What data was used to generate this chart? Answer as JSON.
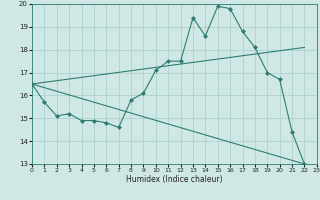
{
  "xlabel": "Humidex (Indice chaleur)",
  "xlim": [
    0,
    23
  ],
  "ylim": [
    13,
    20
  ],
  "yticks": [
    13,
    14,
    15,
    16,
    17,
    18,
    19,
    20
  ],
  "xticks": [
    0,
    1,
    2,
    3,
    4,
    5,
    6,
    7,
    8,
    9,
    10,
    11,
    12,
    13,
    14,
    15,
    16,
    17,
    18,
    19,
    20,
    21,
    22,
    23
  ],
  "background_color": "#cfe8e5",
  "grid_color": "#a8ceca",
  "line_color": "#2e7d70",
  "line1_x": [
    0,
    1,
    2,
    3,
    4,
    5,
    6,
    7,
    8,
    9,
    10,
    11,
    12,
    13,
    14,
    15,
    16,
    17,
    18,
    19,
    20,
    21,
    22
  ],
  "line1_y": [
    16.5,
    15.7,
    15.1,
    15.2,
    14.9,
    14.9,
    14.8,
    14.6,
    15.8,
    16.1,
    17.1,
    17.5,
    17.5,
    19.4,
    18.6,
    19.9,
    19.8,
    18.8,
    18.1,
    17.0,
    16.7,
    14.4,
    13.0
  ],
  "line2_x": [
    0,
    22
  ],
  "line2_y": [
    16.5,
    18.1
  ],
  "line3_x": [
    0,
    22
  ],
  "line3_y": [
    16.5,
    13.0
  ]
}
